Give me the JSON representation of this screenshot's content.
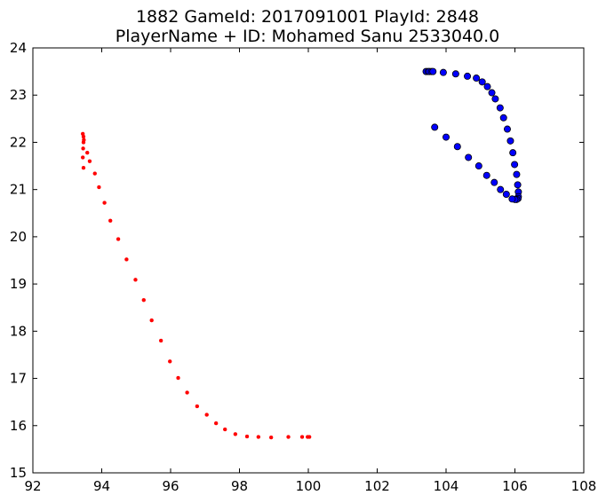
{
  "chart_data": {
    "type": "scatter",
    "title_lines": [
      "1882 GameId: 2017091001 PlayId: 2848",
      "PlayerName + ID: Mohamed Sanu 2533040.0"
    ],
    "xlabel": "",
    "ylabel": "",
    "xlim": [
      92,
      108
    ],
    "ylim": [
      15,
      24
    ],
    "x_ticks": [
      92,
      94,
      96,
      98,
      100,
      102,
      104,
      106,
      108
    ],
    "y_ticks": [
      15,
      16,
      17,
      18,
      19,
      20,
      21,
      22,
      23,
      24
    ],
    "grid": false,
    "series": [
      {
        "color": "#ff0000",
        "marker": "small-circle",
        "points": [
          [
            93.45,
            22.18
          ],
          [
            93.47,
            22.12
          ],
          [
            93.48,
            22.05
          ],
          [
            93.47,
            22.0
          ],
          [
            93.46,
            21.87
          ],
          [
            93.58,
            21.78
          ],
          [
            93.45,
            21.68
          ],
          [
            93.65,
            21.6
          ],
          [
            93.47,
            21.46
          ],
          [
            93.8,
            21.34
          ],
          [
            93.92,
            21.05
          ],
          [
            94.08,
            20.72
          ],
          [
            94.25,
            20.34
          ],
          [
            94.48,
            19.95
          ],
          [
            94.72,
            19.52
          ],
          [
            94.98,
            19.09
          ],
          [
            95.22,
            18.66
          ],
          [
            95.45,
            18.23
          ],
          [
            95.72,
            17.8
          ],
          [
            95.98,
            17.36
          ],
          [
            96.22,
            17.01
          ],
          [
            96.48,
            16.7
          ],
          [
            96.77,
            16.41
          ],
          [
            97.05,
            16.23
          ],
          [
            97.32,
            16.05
          ],
          [
            97.58,
            15.92
          ],
          [
            97.88,
            15.82
          ],
          [
            98.22,
            15.77
          ],
          [
            98.55,
            15.76
          ],
          [
            98.92,
            15.75
          ],
          [
            99.42,
            15.76
          ],
          [
            99.82,
            15.76
          ],
          [
            99.98,
            15.76
          ],
          [
            100.03,
            15.76
          ]
        ]
      },
      {
        "color": "#0000ff",
        "marker": "circle",
        "points": [
          [
            103.42,
            23.5
          ],
          [
            103.48,
            23.5
          ],
          [
            103.52,
            23.5
          ],
          [
            103.58,
            23.5
          ],
          [
            103.62,
            23.5
          ],
          [
            103.92,
            23.48
          ],
          [
            104.28,
            23.45
          ],
          [
            104.62,
            23.4
          ],
          [
            104.88,
            23.36
          ],
          [
            105.05,
            23.28
          ],
          [
            105.2,
            23.18
          ],
          [
            105.33,
            23.05
          ],
          [
            105.43,
            22.92
          ],
          [
            105.57,
            22.73
          ],
          [
            105.67,
            22.52
          ],
          [
            105.78,
            22.28
          ],
          [
            105.87,
            22.03
          ],
          [
            105.94,
            21.78
          ],
          [
            105.99,
            21.53
          ],
          [
            106.05,
            21.32
          ],
          [
            106.08,
            21.1
          ],
          [
            106.1,
            20.95
          ],
          [
            106.1,
            20.85
          ],
          [
            106.09,
            20.81
          ],
          [
            106.05,
            20.79
          ],
          [
            106.0,
            20.79
          ],
          [
            105.92,
            20.8
          ],
          [
            105.75,
            20.9
          ],
          [
            105.58,
            21.0
          ],
          [
            105.4,
            21.15
          ],
          [
            105.18,
            21.3
          ],
          [
            104.95,
            21.5
          ],
          [
            104.65,
            21.68
          ],
          [
            104.33,
            21.91
          ],
          [
            104.0,
            22.11
          ],
          [
            103.67,
            22.32
          ]
        ]
      }
    ]
  }
}
